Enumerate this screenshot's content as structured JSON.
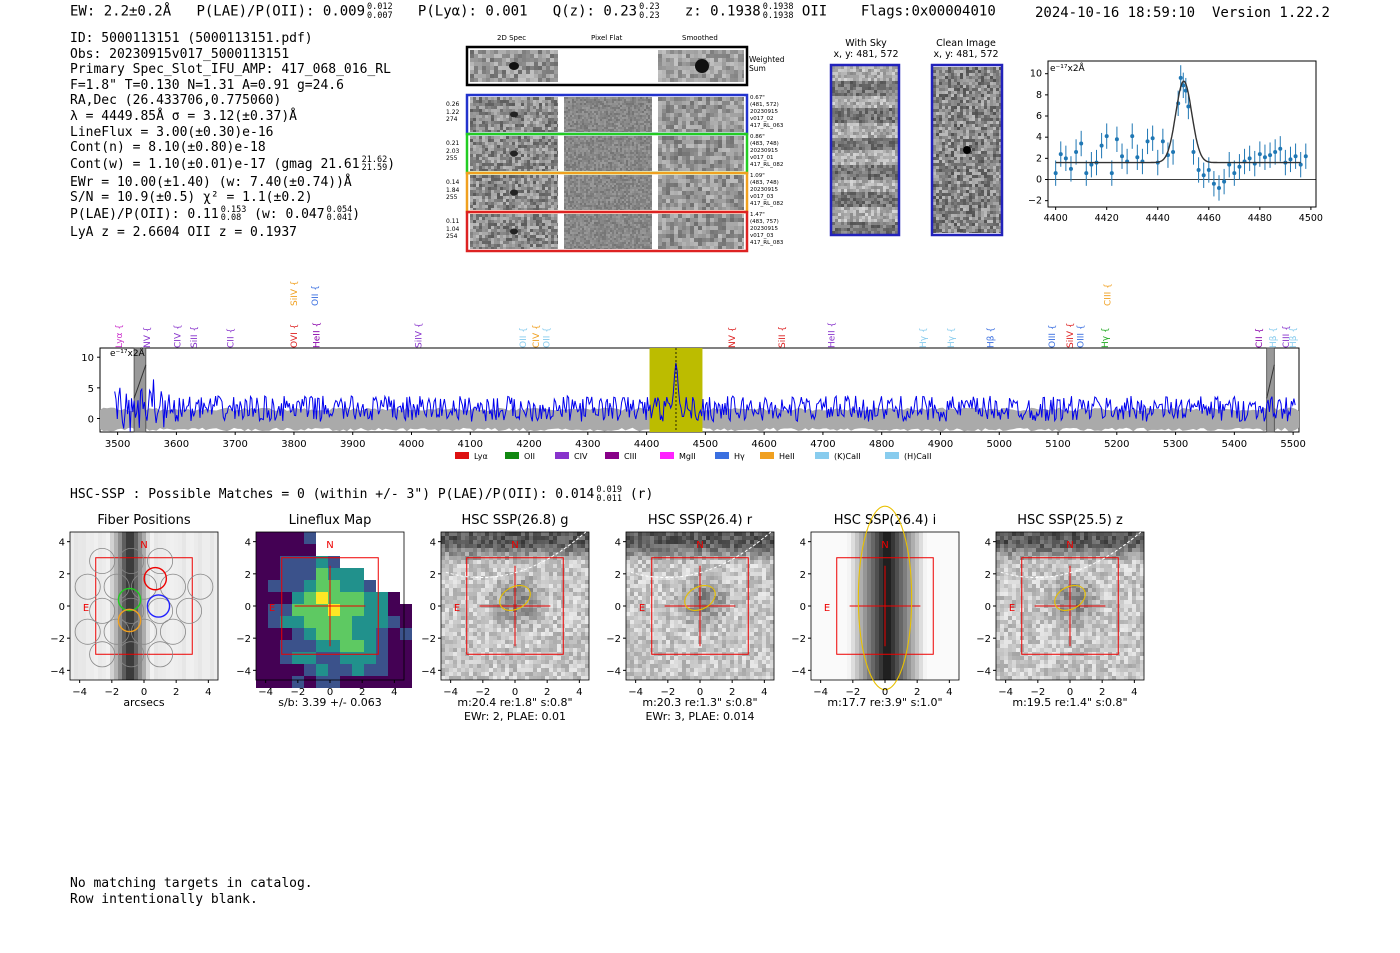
{
  "header": {
    "ew": "EW: 2.2±0.2Å",
    "plae": "P(LAE)/P(OII): 0.009",
    "plae_hi": "0.012",
    "plae_lo": "0.007",
    "plya": "P(Lyα): 0.001",
    "q": "Q(z): 0.23",
    "q_hi": "0.23",
    "q_lo": "0.23",
    "z": "z: 0.1938",
    "z_hi": "0.1938",
    "z_lo": "0.1938",
    "z_line": "OII",
    "flags": "Flags:0x00004010",
    "timestamp": "2024-10-16 18:59:10",
    "version": "Version 1.22.2"
  },
  "info": {
    "id": "ID: 5000113151 (5000113151.pdf)",
    "obs": "Obs: 20230915v017_5000113151",
    "primary": "Primary Spec_Slot_IFU_AMP: 417_068_016_RL",
    "params": "F=1.8\"  T=0.130  N=1.31  A=0.91  g=24.6",
    "radec": "RA,Dec (26.433706,0.775060)",
    "lambda": "λ = 4449.85Å  σ = 3.12(±0.37)Å",
    "lineflux": "LineFlux = 3.00(±0.30)e-16",
    "contn": "Cont(n) = 8.10(±0.80)e-18",
    "contw": "Cont(w) = 1.10(±0.01)e-17 (gmag 21.61",
    "contw_hi": "21.62",
    "contw_lo": "21.59",
    "contw_end": ")",
    "ewr": "EWr = 10.00(±1.40) (w: 7.40(±0.74))Å",
    "sn": "S/N = 10.9(±0.5)  χ² = 1.1(±0.2)",
    "plae": "P(LAE)/P(OII): 0.11",
    "plae_hi": "0.153",
    "plae_lo": "0.08",
    "plae_w": "(w: 0.047",
    "plae_w_hi": "0.054",
    "plae_w_lo": "0.041",
    "plae_w_end": ")",
    "lyaz": "LyA z = 2.6604  OII z = 0.1937"
  },
  "cutouts": {
    "col_2d": "2D Spec",
    "col_pf": "Pixel Flat",
    "col_sm": "Smoothed",
    "weighted": "Weighted Sum",
    "rows": [
      {
        "left": [
          "0.26",
          "1.22",
          "274"
        ],
        "right": [
          "0.67\"",
          "(481, 572)",
          "20230915",
          "v017_02",
          "417_RL_063"
        ],
        "color": "#2233cc"
      },
      {
        "left": [
          "0.21",
          "2.03",
          "255"
        ],
        "right": [
          "0.86\"",
          "(483, 748)",
          "20230915",
          "v017_01",
          "417_RL_082"
        ],
        "color": "#22cc22"
      },
      {
        "left": [
          "0.14",
          "1.84",
          "255"
        ],
        "right": [
          "1.09\"",
          "(483, 748)",
          "20230915",
          "v017_03",
          "417_RL_082"
        ],
        "color": "#f0a020"
      },
      {
        "left": [
          "0.11",
          "1.04",
          "254"
        ],
        "right": [
          "1.47\"",
          "(483, 757)",
          "20230915",
          "v017_03",
          "417_RL_083"
        ],
        "color": "#dd2222"
      }
    ],
    "with_sky": "With Sky",
    "with_sky_xy": "x, y: 481, 572",
    "clean": "Clean Image",
    "clean_xy": "x, y: 481, 572"
  },
  "fit_chart": {
    "unit": "e⁻¹⁷x2Å",
    "xticks": [
      "4400",
      "4420",
      "4440",
      "4460",
      "4480",
      "4500"
    ],
    "yticks": [
      "10",
      "8",
      "6",
      "4",
      "2",
      "0",
      "−2"
    ]
  },
  "chart_data": [
    {
      "type": "scatter",
      "name_hint": "line fit",
      "xlim": [
        4397,
        4502
      ],
      "ylim": [
        -2.6,
        11.2
      ],
      "x": [
        4400,
        4402,
        4404,
        4406,
        4408,
        4410,
        4412,
        4414,
        4416,
        4418,
        4420,
        4422,
        4424,
        4426,
        4428,
        4430,
        4432,
        4434,
        4436,
        4438,
        4440,
        4442,
        4444,
        4446,
        4448,
        4449,
        4450,
        4451,
        4452,
        4454,
        4456,
        4458,
        4460,
        4462,
        4464,
        4466,
        4468,
        4470,
        4472,
        4474,
        4476,
        4478,
        4480,
        4482,
        4484,
        4486,
        4488,
        4490,
        4492,
        4494,
        4496,
        4498
      ],
      "y": [
        0.6,
        2.4,
        2.0,
        1.0,
        2.6,
        3.4,
        0.6,
        1.4,
        1.6,
        3.2,
        4.1,
        0.6,
        3.8,
        2.2,
        1.7,
        4.1,
        2.1,
        1.7,
        3.6,
        3.9,
        1.6,
        3.6,
        2.3,
        2.6,
        7.2,
        9.6,
        8.9,
        8.4,
        6.9,
        2.6,
        0.9,
        0.4,
        0.9,
        -0.4,
        -0.8,
        -0.2,
        1.4,
        0.6,
        1.2,
        1.7,
        2.0,
        1.5,
        2.4,
        2.1,
        2.3,
        2.6,
        2.9,
        1.6,
        1.9,
        2.2,
        1.4,
        2.2
      ],
      "err": 1.2,
      "fit": {
        "continuum": 1.6,
        "amp": 7.7,
        "center": 4450.2,
        "sigma": 3.12
      }
    },
    {
      "type": "line",
      "name_hint": "full spectrum",
      "xlim": [
        3470,
        5510
      ],
      "ylim": [
        -2.2,
        11.5
      ],
      "xticks": [
        3500,
        3600,
        3700,
        3800,
        3900,
        4000,
        4100,
        4200,
        4300,
        4400,
        4500,
        4600,
        4700,
        4800,
        4900,
        5000,
        5100,
        5200,
        5300,
        5400,
        5500
      ],
      "yticks": [
        0,
        5,
        10
      ],
      "unit": "e⁻¹⁷x2Å",
      "highlight": [
        4405,
        4495
      ],
      "line_center": 4450,
      "lines_top": [
        {
          "x": 3800,
          "label": "SiIV",
          "color": "#f0a020",
          "row": 0
        },
        {
          "x": 3836,
          "label": "OII",
          "color": "#3a6fe0",
          "row": 0
        },
        {
          "x": 5184,
          "label": "CIII",
          "color": "#f0a020",
          "row": 0
        },
        {
          "x": 3502,
          "label": "Lyα",
          "color": "#cc33cc",
          "row": 1
        },
        {
          "x": 3550,
          "label": "NV",
          "color": "#8833cc",
          "row": 1
        },
        {
          "x": 3602,
          "label": "CIV",
          "color": "#8833cc",
          "row": 1
        },
        {
          "x": 3630,
          "label": "SiII",
          "color": "#8833cc",
          "row": 1
        },
        {
          "x": 3692,
          "label": "CII",
          "color": "#8833cc",
          "row": 1
        },
        {
          "x": 3800,
          "label": "OVI",
          "color": "#dd2222",
          "row": 1
        },
        {
          "x": 3838,
          "label": "HeII",
          "color": "#8800aa",
          "row": 1
        },
        {
          "x": 4012,
          "label": "SiIV",
          "color": "#8833cc",
          "row": 1
        },
        {
          "x": 4190,
          "label": "OII",
          "color": "#88ccee",
          "row": 1
        },
        {
          "x": 4212,
          "label": "CIV",
          "color": "#f0a020",
          "row": 1
        },
        {
          "x": 4230,
          "label": "OII",
          "color": "#88ccee",
          "row": 1
        },
        {
          "x": 4545,
          "label": "NV",
          "color": "#dd2222",
          "row": 1
        },
        {
          "x": 4630,
          "label": "SiII",
          "color": "#dd2222",
          "row": 1
        },
        {
          "x": 4715,
          "label": "HeII",
          "color": "#8833cc",
          "row": 1
        },
        {
          "x": 4870,
          "label": "Hγ",
          "color": "#88ccee",
          "row": 1
        },
        {
          "x": 4918,
          "label": "Hγ",
          "color": "#88ccee",
          "row": 1
        },
        {
          "x": 4985,
          "label": "Hβ",
          "color": "#3a6fe0",
          "row": 1
        },
        {
          "x": 5090,
          "label": "OIII",
          "color": "#3a6fe0",
          "row": 1
        },
        {
          "x": 5120,
          "label": "SiIV",
          "color": "#dd2222",
          "row": 1
        },
        {
          "x": 5138,
          "label": "OIII",
          "color": "#3a6fe0",
          "row": 1
        },
        {
          "x": 5180,
          "label": "Hγ",
          "color": "#22aa22",
          "row": 1
        },
        {
          "x": 5442,
          "label": "CII",
          "color": "#8800aa",
          "row": 1
        },
        {
          "x": 5466,
          "label": "Hβ",
          "color": "#88ccee",
          "row": 1
        },
        {
          "x": 5488,
          "label": "CIII",
          "color": "#8833cc",
          "row": 1
        },
        {
          "x": 5500,
          "label": "Hβ",
          "color": "#88ccee",
          "row": 1
        }
      ],
      "legend": [
        {
          "label": "Lyα",
          "color": "#dd1111"
        },
        {
          "label": "OII",
          "color": "#118811"
        },
        {
          "label": "CIV",
          "color": "#8833cc"
        },
        {
          "label": "CIII",
          "color": "#880088"
        },
        {
          "label": "MgII",
          "color": "#ff22ff"
        },
        {
          "label": "Hγ",
          "color": "#3a6fe0"
        },
        {
          "label": "HeII",
          "color": "#f0a020"
        },
        {
          "label": "(K)CaII",
          "color": "#88ccee"
        },
        {
          "label": "(H)CaII",
          "color": "#88ccee"
        }
      ]
    }
  ],
  "hsc": {
    "summary": "HSC-SSP : Possible Matches = 0 (within +/- 3\")  P(LAE)/P(OII): 0.014",
    "summary_hi": "0.019",
    "summary_lo": "0.011",
    "summary_end": "(r)",
    "panels": [
      {
        "title": "Fiber Positions",
        "footer1": "arcsecs",
        "footer2": ""
      },
      {
        "title": "Lineflux Map",
        "footer1": "s/b: 3.39 +/- 0.063",
        "footer2": ""
      },
      {
        "title": "HSC SSP(26.8) g",
        "footer1": "m:20.4  re:1.8\"  s:0.8\"",
        "footer2": "EWr: 2, PLAE: 0.01"
      },
      {
        "title": "HSC SSP(26.4) r",
        "footer1": "m:20.3  re:1.3\"  s:0.8\"",
        "footer2": "EWr: 3, PLAE: 0.014"
      },
      {
        "title": "HSC SSP(26.4) i",
        "footer1": "m:17.7  re:3.9\"  s:1.0\"",
        "footer2": ""
      },
      {
        "title": "HSC SSP(25.5) z",
        "footer1": "m:19.5  re:1.4\"  s:0.8\"",
        "footer2": ""
      }
    ],
    "axis_ticks": [
      "4",
      "2",
      "0",
      "−2",
      "−4"
    ],
    "axis_xticks": [
      "−4",
      "−2",
      "0",
      "2",
      "4"
    ],
    "north": "N",
    "east": "E"
  },
  "footer": {
    "line1": "No matching targets in catalog.",
    "line2": "Row intentionally blank."
  }
}
